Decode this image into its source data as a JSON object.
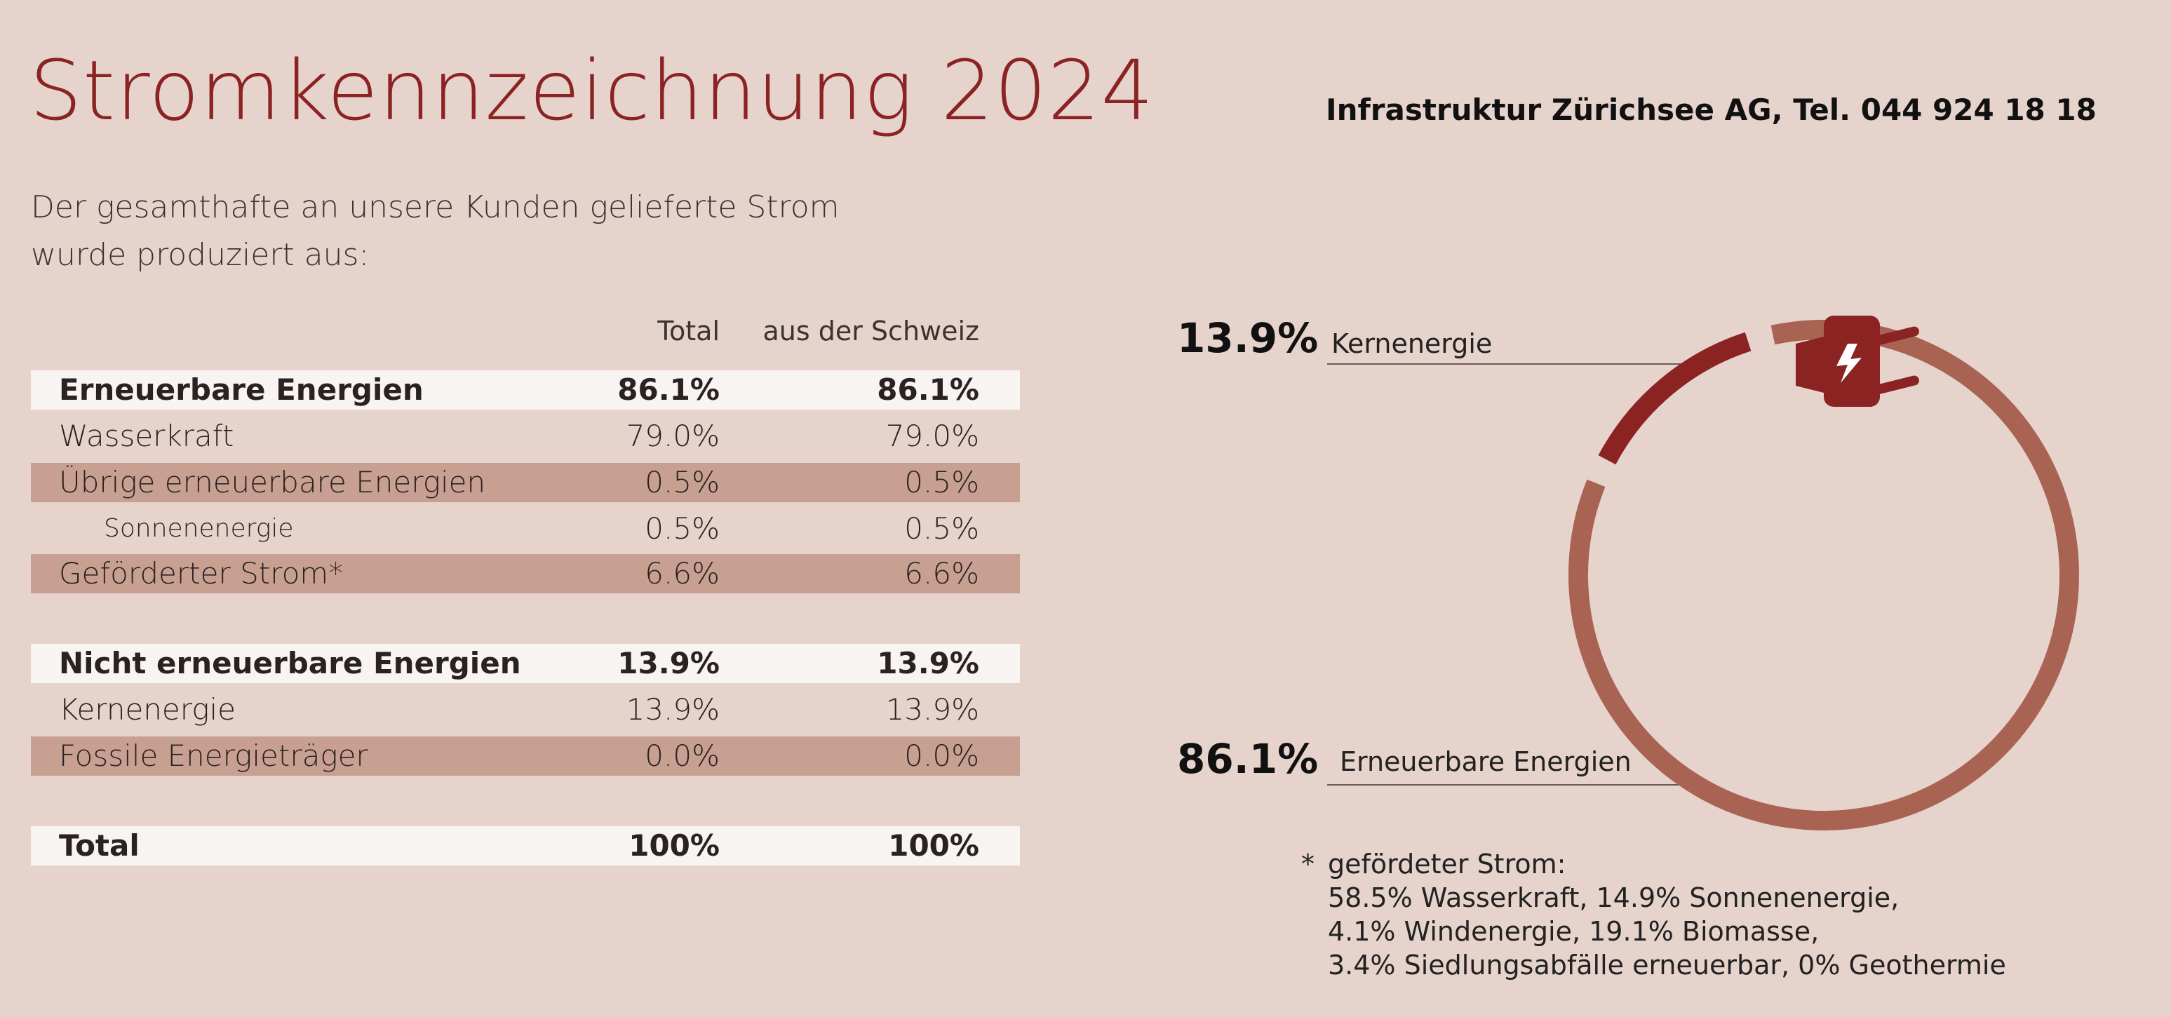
{
  "title": "Stromkennzeichnung 2024",
  "subtitle_line1": "Der gesamthafte an unsere Kunden gelieferte Strom",
  "subtitle_line2": "wurde produziert aus:",
  "company": "Infrastruktur Zürichsee AG, Tel. 044 924 18 18",
  "table": {
    "col_total": "Total",
    "col_ch": "aus der Schweiz",
    "rows": [
      {
        "label": "Erneuerbare Energien",
        "total": "86.1%",
        "ch": "86.1%"
      },
      {
        "label": "Wasserkraft",
        "total": "79.0%",
        "ch": "79.0%"
      },
      {
        "label": "Übrige erneuerbare Energien",
        "total": "0.5%",
        "ch": "0.5%"
      },
      {
        "label": "Sonnenenergie",
        "total": "0.5%",
        "ch": "0.5%"
      },
      {
        "label": "Geförderter Strom*",
        "total": "6.6%",
        "ch": "6.6%"
      },
      {
        "label": "Nicht erneuerbare Energien",
        "total": "13.9%",
        "ch": "13.9%"
      },
      {
        "label": "Kernenergie",
        "total": "13.9%",
        "ch": "13.9%"
      },
      {
        "label": "Fossile Energieträger",
        "total": "0.0%",
        "ch": "0.0%"
      },
      {
        "label": "Total",
        "total": "100%",
        "ch": "100%"
      }
    ]
  },
  "chart_data": {
    "type": "pie",
    "categories": [
      "Kernenergie",
      "Erneuerbare Energien"
    ],
    "values": [
      13.9,
      86.1
    ],
    "labels": [
      "13.9%",
      "86.1%"
    ],
    "colors": [
      "#8b2323",
      "#a86353"
    ]
  },
  "footnote": {
    "star": "*",
    "lines": [
      "gefördeter Strom:",
      "58.5% Wasserkraft, 14.9% Sonnenenergie,",
      "4.1% Windenergie, 19.1% Biomasse,",
      "3.4% Siedlungsabfälle erneuerbar, 0% Geothermie"
    ]
  }
}
